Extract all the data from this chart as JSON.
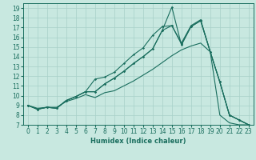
{
  "bg_color": "#c8e8e0",
  "line_color": "#1a6e5e",
  "grid_color": "#a8d0c8",
  "xlim": [
    -0.5,
    23.5
  ],
  "ylim": [
    7,
    19.5
  ],
  "yticks": [
    7,
    8,
    9,
    10,
    11,
    12,
    13,
    14,
    15,
    16,
    17,
    18,
    19
  ],
  "xticks": [
    0,
    1,
    2,
    3,
    4,
    5,
    6,
    7,
    8,
    9,
    10,
    11,
    12,
    13,
    14,
    15,
    16,
    17,
    18,
    19,
    20,
    21,
    22,
    23
  ],
  "xlabel": "Humidex (Indice chaleur)",
  "series": [
    {
      "x": [
        0,
        1,
        2,
        3,
        4,
        5,
        6,
        7,
        8,
        9,
        10,
        11,
        12,
        13,
        14,
        15,
        16,
        17,
        18,
        19,
        20,
        21,
        22,
        23
      ],
      "y": [
        9.0,
        8.7,
        8.8,
        8.8,
        9.4,
        9.7,
        10.1,
        9.8,
        10.3,
        10.5,
        11.0,
        11.5,
        12.1,
        12.7,
        13.4,
        14.1,
        14.7,
        15.1,
        15.4,
        14.5,
        8.0,
        7.2,
        7.0,
        7.0
      ],
      "has_marker": false
    },
    {
      "x": [
        0,
        1,
        2,
        3,
        4,
        5,
        6,
        7,
        8,
        9,
        10,
        11,
        12,
        13,
        14,
        15,
        16,
        17,
        18,
        19,
        20,
        21,
        22,
        23
      ],
      "y": [
        9.0,
        8.6,
        8.8,
        8.7,
        9.5,
        9.9,
        10.4,
        10.4,
        11.2,
        11.8,
        12.5,
        13.3,
        14.0,
        14.8,
        16.7,
        17.2,
        15.3,
        17.1,
        17.7,
        14.5,
        11.4,
        8.0,
        7.5,
        7.0
      ],
      "has_marker": true
    },
    {
      "x": [
        0,
        1,
        2,
        3,
        4,
        5,
        6,
        7,
        8,
        9,
        10,
        11,
        12,
        13,
        14,
        15,
        16,
        17,
        18,
        19,
        20,
        21,
        22,
        23
      ],
      "y": [
        9.0,
        8.6,
        8.8,
        8.7,
        9.5,
        9.9,
        10.4,
        10.4,
        11.2,
        11.8,
        12.5,
        13.3,
        14.0,
        14.8,
        16.7,
        19.1,
        15.2,
        17.1,
        17.7,
        14.5,
        11.4,
        8.0,
        7.5,
        7.0
      ],
      "has_marker": true
    },
    {
      "x": [
        0,
        1,
        2,
        3,
        4,
        5,
        6,
        7,
        8,
        9,
        10,
        11,
        12,
        13,
        14,
        15,
        16,
        17,
        18,
        19,
        20,
        21,
        22,
        23
      ],
      "y": [
        9.0,
        8.6,
        8.8,
        8.7,
        9.5,
        9.9,
        10.4,
        11.7,
        11.9,
        12.4,
        13.3,
        14.2,
        14.9,
        16.2,
        17.1,
        17.2,
        15.4,
        17.2,
        17.8,
        14.5,
        11.4,
        8.0,
        7.5,
        7.0
      ],
      "has_marker": true
    }
  ]
}
